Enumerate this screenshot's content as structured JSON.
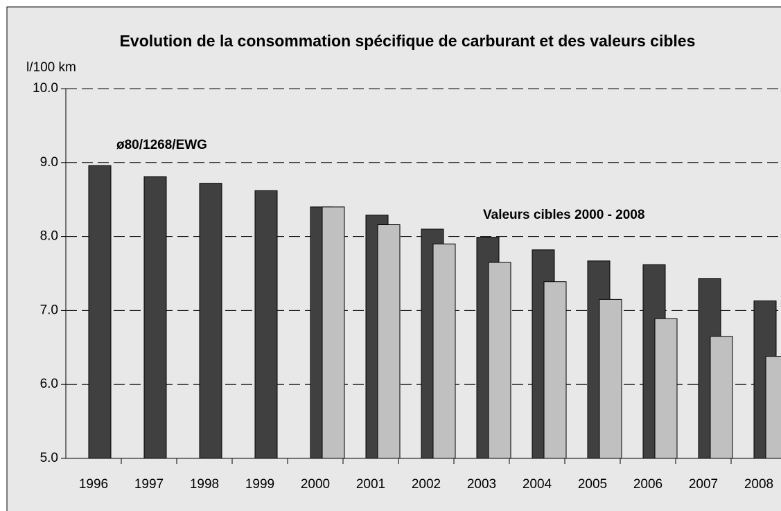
{
  "chart_data": {
    "type": "bar",
    "title": "Evolution de la consommation spécifique de carburant et des valeurs cibles",
    "y_label": "l/100 km",
    "categories": [
      "1996",
      "1997",
      "1998",
      "1999",
      "2000",
      "2001",
      "2002",
      "2003",
      "2004",
      "2005",
      "2006",
      "2007",
      "2008"
    ],
    "series": [
      {
        "name": "ø80/1268/EWG",
        "color": "#404040",
        "values": [
          8.96,
          8.81,
          8.72,
          8.62,
          8.4,
          8.29,
          8.1,
          7.99,
          7.82,
          7.67,
          7.62,
          7.43,
          7.13
        ]
      },
      {
        "name": "Valeurs cibles 2000 - 2008",
        "color": "#c0c0c0",
        "values": [
          null,
          null,
          null,
          null,
          8.4,
          8.16,
          7.9,
          7.65,
          7.39,
          7.15,
          6.89,
          6.65,
          6.38
        ]
      }
    ],
    "ylim": [
      5,
      10
    ],
    "yticks": [
      {
        "value": 5,
        "label": "5.0"
      },
      {
        "value": 6,
        "label": "6.0"
      },
      {
        "value": 7,
        "label": "7.0"
      },
      {
        "value": 8,
        "label": "8.0"
      },
      {
        "value": 9,
        "label": "9.0"
      },
      {
        "value": 10,
        "label": "10.0"
      }
    ],
    "grid": true
  }
}
